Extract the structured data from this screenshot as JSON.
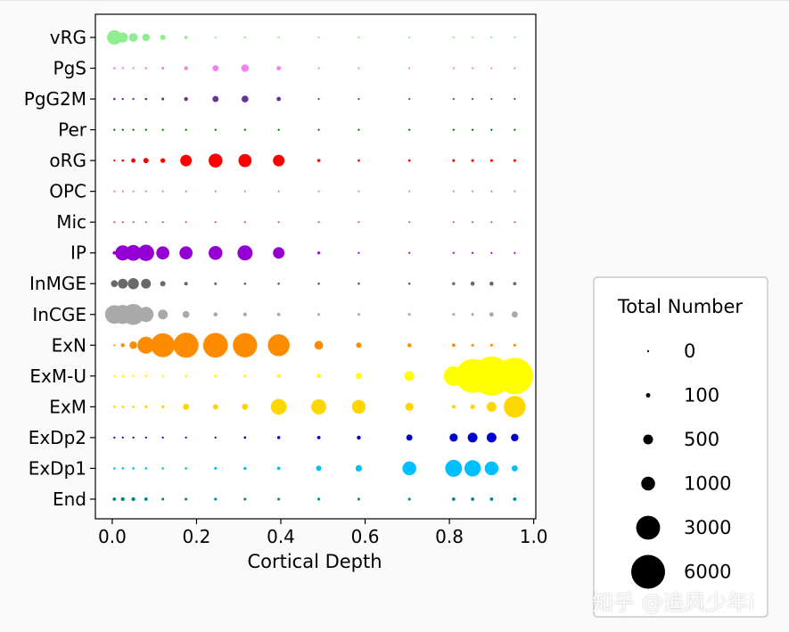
{
  "chart_data": {
    "type": "scatter",
    "subtype": "dot-plot",
    "title": "",
    "xlabel": "Cortical Depth",
    "ylabel": "",
    "xlim": [
      -0.04,
      1.005
    ],
    "xticks": [
      0.0,
      0.2,
      0.4,
      0.6,
      0.8,
      1.0
    ],
    "xtick_labels": [
      "0.0",
      "0.2",
      "0.4",
      "0.6",
      "0.8",
      "1.0"
    ],
    "grid": false,
    "x": [
      0.005,
      0.025,
      0.05,
      0.08,
      0.12,
      0.175,
      0.245,
      0.315,
      0.395,
      0.49,
      0.585,
      0.705,
      0.81,
      0.855,
      0.9,
      0.955
    ],
    "series": [
      {
        "name": "vRG",
        "color": "#90ee90",
        "values": [
          1100,
          550,
          400,
          300,
          150,
          60,
          20,
          15,
          15,
          10,
          10,
          10,
          10,
          10,
          10,
          10
        ]
      },
      {
        "name": "PgS",
        "color": "#ee82ee",
        "values": [
          30,
          25,
          25,
          30,
          40,
          80,
          200,
          300,
          100,
          15,
          5,
          5,
          5,
          5,
          5,
          5
        ]
      },
      {
        "name": "PgG2M",
        "color": "#663399",
        "values": [
          30,
          25,
          25,
          30,
          40,
          80,
          200,
          250,
          100,
          10,
          5,
          5,
          5,
          5,
          5,
          5
        ]
      },
      {
        "name": "Per",
        "color": "#006400",
        "values": [
          15,
          15,
          15,
          15,
          15,
          15,
          15,
          15,
          15,
          10,
          10,
          15,
          15,
          15,
          20,
          20
        ]
      },
      {
        "name": "oRG",
        "color": "#ff0000",
        "values": [
          15,
          30,
          100,
          150,
          120,
          700,
          1000,
          900,
          700,
          50,
          30,
          30,
          40,
          40,
          40,
          40
        ]
      },
      {
        "name": "OPC",
        "color": "#f08080",
        "values": [
          10,
          10,
          10,
          10,
          10,
          10,
          10,
          10,
          10,
          10,
          10,
          10,
          10,
          10,
          10,
          10
        ]
      },
      {
        "name": "Mic",
        "color": "#cd5c5c",
        "values": [
          10,
          10,
          10,
          10,
          10,
          10,
          10,
          10,
          10,
          10,
          10,
          10,
          10,
          10,
          10,
          10
        ]
      },
      {
        "name": "IP",
        "color": "#9400d3",
        "values": [
          60,
          1200,
          1300,
          1400,
          900,
          900,
          1000,
          1200,
          700,
          40,
          20,
          20,
          20,
          20,
          20,
          20
        ]
      },
      {
        "name": "InMGE",
        "color": "#696969",
        "values": [
          250,
          500,
          650,
          500,
          150,
          70,
          40,
          30,
          30,
          30,
          30,
          30,
          50,
          90,
          90,
          60
        ]
      },
      {
        "name": "InCGE",
        "color": "#a9a9a9",
        "values": [
          1800,
          1900,
          2300,
          1200,
          500,
          250,
          90,
          70,
          60,
          40,
          40,
          40,
          40,
          40,
          100,
          200
        ]
      },
      {
        "name": "ExN",
        "color": "#ff8c00",
        "values": [
          20,
          80,
          300,
          1500,
          3000,
          3300,
          3200,
          3100,
          2500,
          400,
          150,
          80,
          60,
          40,
          40,
          40
        ]
      },
      {
        "name": "ExM-U",
        "color": "#ffff00",
        "values": [
          30,
          30,
          30,
          30,
          30,
          40,
          40,
          40,
          70,
          100,
          200,
          500,
          2000,
          6000,
          8000,
          7000
        ]
      },
      {
        "name": "ExM",
        "color": "#ffd700",
        "values": [
          30,
          30,
          30,
          40,
          50,
          200,
          150,
          200,
          1300,
          1200,
          1000,
          350,
          70,
          120,
          500,
          2500
        ]
      },
      {
        "name": "ExDp2",
        "color": "#0000cd",
        "values": [
          10,
          10,
          10,
          10,
          10,
          20,
          20,
          30,
          50,
          60,
          80,
          200,
          350,
          500,
          500,
          300
        ]
      },
      {
        "name": "ExDp1",
        "color": "#00bfff",
        "values": [
          30,
          30,
          30,
          30,
          30,
          30,
          40,
          50,
          60,
          150,
          220,
          1000,
          1500,
          1400,
          1000,
          200
        ]
      },
      {
        "name": "End",
        "color": "#008b8b",
        "values": [
          60,
          80,
          80,
          60,
          40,
          40,
          40,
          40,
          40,
          40,
          40,
          40,
          60,
          60,
          60,
          60
        ]
      }
    ],
    "categories_order_bottom_to_top": [
      "End",
      "ExDp1",
      "ExDp2",
      "ExM",
      "ExM-U",
      "ExN",
      "InCGE",
      "InMGE",
      "IP",
      "Mic",
      "OPC",
      "oRG",
      "Per",
      "PgG2M",
      "PgS",
      "vRG"
    ],
    "size_legend": {
      "title": "Total Number",
      "placement": "right",
      "values": [
        0,
        100,
        500,
        1000,
        3000,
        6000
      ],
      "labels": [
        "0",
        "100",
        "500",
        "1000",
        "3000",
        "6000"
      ]
    }
  },
  "watermark": "知乎 @追风少年i"
}
